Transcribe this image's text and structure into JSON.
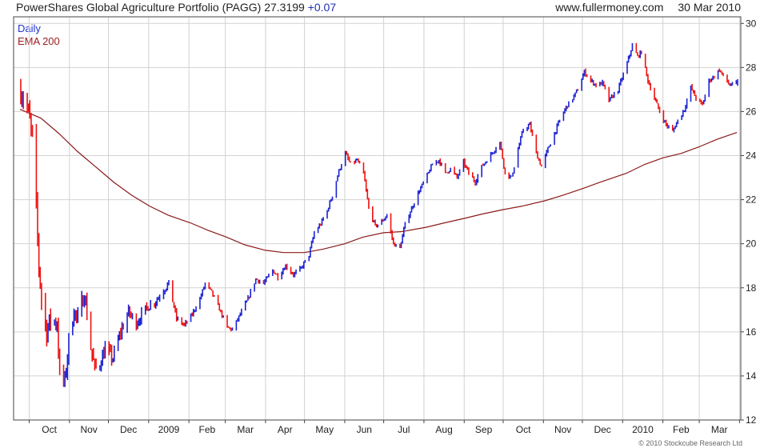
{
  "header": {
    "name": "PowerShares Global Agriculture Portfolio (PAGG)",
    "price": "27.3199",
    "change": "+0.07",
    "site": "www.fullermoney.com",
    "date": "30 Mar 2010"
  },
  "legend": {
    "daily": "Daily",
    "ema": "EMA 200"
  },
  "copyright": "© 2010 Stockcube Research Ltd",
  "colors": {
    "up": "#1a22d4",
    "down": "#ee1111",
    "ema": "#8b1a1a",
    "grid": "#d2d2d2",
    "axis": "#444444"
  },
  "chart_data": {
    "type": "line",
    "y_ticks": [
      12,
      14,
      16,
      18,
      20,
      22,
      24,
      26,
      28,
      30
    ],
    "ylim": [
      12,
      30.3
    ],
    "x_ticks": [
      "Oct",
      "Nov",
      "Dec",
      "2009",
      "Feb",
      "Mar",
      "Apr",
      "May",
      "Jun",
      "Jul",
      "Aug",
      "Sep",
      "Oct",
      "Nov",
      "Dec",
      "2010",
      "Feb",
      "Mar"
    ],
    "grid": true,
    "series": [
      {
        "name": "Daily",
        "style": "bars",
        "points": [
          [
            "2008-09-24",
            27.0
          ],
          [
            "2008-09-29",
            26.2
          ],
          [
            "2008-10-03",
            24.8
          ],
          [
            "2008-10-06",
            21.5
          ],
          [
            "2008-10-08",
            19.0
          ],
          [
            "2008-10-10",
            17.5
          ],
          [
            "2008-10-14",
            16.0
          ],
          [
            "2008-10-17",
            16.6
          ],
          [
            "2008-10-22",
            16.4
          ],
          [
            "2008-10-24",
            14.0
          ],
          [
            "2008-10-28",
            13.7
          ],
          [
            "2008-10-31",
            15.6
          ],
          [
            "2008-11-04",
            17.0
          ],
          [
            "2008-11-07",
            16.5
          ],
          [
            "2008-11-12",
            17.8
          ],
          [
            "2008-11-17",
            15.3
          ],
          [
            "2008-11-20",
            14.3
          ],
          [
            "2008-11-24",
            14.6
          ],
          [
            "2008-11-28",
            15.2
          ],
          [
            "2008-12-04",
            14.8
          ],
          [
            "2008-12-10",
            16.0
          ],
          [
            "2008-12-16",
            16.9
          ],
          [
            "2008-12-22",
            16.4
          ],
          [
            "2008-12-30",
            17.1
          ],
          [
            "2009-01-06",
            17.4
          ],
          [
            "2009-01-12",
            17.9
          ],
          [
            "2009-01-16",
            18.2
          ],
          [
            "2009-01-22",
            16.6
          ],
          [
            "2009-01-28",
            16.3
          ],
          [
            "2009-02-03",
            16.8
          ],
          [
            "2009-02-09",
            17.5
          ],
          [
            "2009-02-13",
            18.2
          ],
          [
            "2009-02-18",
            17.8
          ],
          [
            "2009-02-25",
            16.9
          ],
          [
            "2009-03-02",
            16.2
          ],
          [
            "2009-03-06",
            16.1
          ],
          [
            "2009-03-12",
            16.8
          ],
          [
            "2009-03-18",
            17.5
          ],
          [
            "2009-03-24",
            18.4
          ],
          [
            "2009-03-30",
            18.2
          ],
          [
            "2009-04-06",
            18.8
          ],
          [
            "2009-04-10",
            18.5
          ],
          [
            "2009-04-16",
            19.0
          ],
          [
            "2009-04-22",
            18.6
          ],
          [
            "2009-04-28",
            18.9
          ],
          [
            "2009-05-04",
            19.5
          ],
          [
            "2009-05-08",
            20.5
          ],
          [
            "2009-05-13",
            20.9
          ],
          [
            "2009-05-18",
            21.5
          ],
          [
            "2009-05-22",
            22.2
          ],
          [
            "2009-05-27",
            23.3
          ],
          [
            "2009-06-01",
            24.1
          ],
          [
            "2009-06-05",
            23.6
          ],
          [
            "2009-06-10",
            23.8
          ],
          [
            "2009-06-15",
            23.2
          ],
          [
            "2009-06-19",
            21.6
          ],
          [
            "2009-06-24",
            20.8
          ],
          [
            "2009-06-29",
            21.0
          ],
          [
            "2009-07-03",
            21.3
          ],
          [
            "2009-07-08",
            20.0
          ],
          [
            "2009-07-13",
            19.8
          ],
          [
            "2009-07-17",
            20.9
          ],
          [
            "2009-07-22",
            21.6
          ],
          [
            "2009-07-27",
            22.3
          ],
          [
            "2009-08-03",
            23.1
          ],
          [
            "2009-08-07",
            23.6
          ],
          [
            "2009-08-12",
            23.8
          ],
          [
            "2009-08-17",
            23.2
          ],
          [
            "2009-08-21",
            23.4
          ],
          [
            "2009-08-26",
            23.0
          ],
          [
            "2009-08-31",
            23.7
          ],
          [
            "2009-09-04",
            23.2
          ],
          [
            "2009-09-09",
            22.8
          ],
          [
            "2009-09-14",
            23.5
          ],
          [
            "2009-09-18",
            23.8
          ],
          [
            "2009-09-23",
            24.2
          ],
          [
            "2009-09-28",
            24.6
          ],
          [
            "2009-10-02",
            23.2
          ],
          [
            "2009-10-07",
            23.0
          ],
          [
            "2009-10-12",
            24.3
          ],
          [
            "2009-10-16",
            25.2
          ],
          [
            "2009-10-21",
            25.4
          ],
          [
            "2009-10-26",
            24.1
          ],
          [
            "2009-10-30",
            23.5
          ],
          [
            "2009-11-04",
            24.3
          ],
          [
            "2009-11-09",
            25.0
          ],
          [
            "2009-11-13",
            25.6
          ],
          [
            "2009-11-18",
            26.2
          ],
          [
            "2009-11-23",
            26.6
          ],
          [
            "2009-11-27",
            27.0
          ],
          [
            "2009-12-02",
            27.8
          ],
          [
            "2009-12-07",
            27.4
          ],
          [
            "2009-12-11",
            27.2
          ],
          [
            "2009-12-16",
            27.3
          ],
          [
            "2009-12-21",
            26.5
          ],
          [
            "2009-12-28",
            27.0
          ],
          [
            "2010-01-04",
            28.2
          ],
          [
            "2010-01-08",
            29.0
          ],
          [
            "2010-01-12",
            28.5
          ],
          [
            "2010-01-15",
            28.7
          ],
          [
            "2010-01-20",
            27.4
          ],
          [
            "2010-01-25",
            26.6
          ],
          [
            "2010-01-29",
            26.0
          ],
          [
            "2010-02-03",
            25.4
          ],
          [
            "2010-02-08",
            25.1
          ],
          [
            "2010-02-12",
            25.6
          ],
          [
            "2010-02-17",
            26.1
          ],
          [
            "2010-02-22",
            27.1
          ],
          [
            "2010-02-26",
            26.6
          ],
          [
            "2010-03-03",
            26.3
          ],
          [
            "2010-03-08",
            27.4
          ],
          [
            "2010-03-12",
            27.6
          ],
          [
            "2010-03-16",
            27.9
          ],
          [
            "2010-03-19",
            27.6
          ],
          [
            "2010-03-24",
            27.2
          ],
          [
            "2010-03-30",
            27.32
          ]
        ]
      },
      {
        "name": "EMA 200",
        "style": "line",
        "points": [
          [
            "2008-09-24",
            26.1
          ],
          [
            "2008-10-10",
            25.7
          ],
          [
            "2008-10-24",
            25.0
          ],
          [
            "2008-11-07",
            24.2
          ],
          [
            "2008-11-21",
            23.5
          ],
          [
            "2008-12-05",
            22.8
          ],
          [
            "2008-12-19",
            22.2
          ],
          [
            "2009-01-02",
            21.7
          ],
          [
            "2009-01-16",
            21.3
          ],
          [
            "2009-02-02",
            20.95
          ],
          [
            "2009-02-16",
            20.6
          ],
          [
            "2009-03-02",
            20.3
          ],
          [
            "2009-03-16",
            19.95
          ],
          [
            "2009-04-01",
            19.7
          ],
          [
            "2009-04-15",
            19.6
          ],
          [
            "2009-05-01",
            19.6
          ],
          [
            "2009-05-15",
            19.75
          ],
          [
            "2009-06-01",
            20.0
          ],
          [
            "2009-06-15",
            20.3
          ],
          [
            "2009-07-01",
            20.5
          ],
          [
            "2009-07-15",
            20.55
          ],
          [
            "2009-08-03",
            20.75
          ],
          [
            "2009-08-17",
            20.95
          ],
          [
            "2009-09-01",
            21.15
          ],
          [
            "2009-09-15",
            21.35
          ],
          [
            "2009-10-01",
            21.55
          ],
          [
            "2009-10-15",
            21.7
          ],
          [
            "2009-11-02",
            21.95
          ],
          [
            "2009-11-16",
            22.2
          ],
          [
            "2009-12-01",
            22.5
          ],
          [
            "2009-12-15",
            22.8
          ],
          [
            "2010-01-04",
            23.2
          ],
          [
            "2010-01-18",
            23.6
          ],
          [
            "2010-02-01",
            23.9
          ],
          [
            "2010-02-15",
            24.1
          ],
          [
            "2010-03-01",
            24.4
          ],
          [
            "2010-03-15",
            24.75
          ],
          [
            "2010-03-30",
            25.05
          ]
        ]
      }
    ]
  }
}
